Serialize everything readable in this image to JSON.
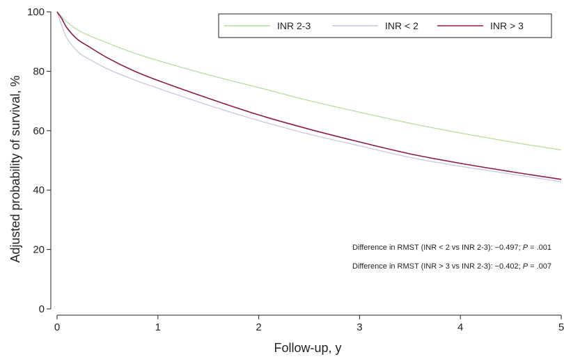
{
  "chart_data": {
    "type": "line",
    "title": "",
    "xlabel": "Follow-up, y",
    "ylabel": "Adjusted probability of survival, %",
    "xlim": [
      0,
      5
    ],
    "ylim": [
      0,
      100
    ],
    "x_ticks": [
      0,
      1,
      2,
      3,
      4,
      5
    ],
    "x_tick_labels": [
      "0",
      "1",
      "2",
      "3",
      "4",
      "5"
    ],
    "y_ticks": [
      0,
      20,
      40,
      60,
      80,
      100
    ],
    "y_tick_labels": [
      "0",
      "20",
      "40",
      "60",
      "80",
      "100"
    ],
    "grid": false,
    "legend_position": "top-right",
    "series": [
      {
        "name": "INR 2-3",
        "color": "#b7dca0",
        "x": [
          0,
          0.05,
          0.1,
          0.2,
          0.3,
          0.5,
          0.75,
          1,
          1.5,
          2,
          2.5,
          3,
          3.5,
          4,
          4.5,
          5
        ],
        "y": [
          100,
          98.2,
          96.5,
          94,
          92.3,
          89.5,
          86.3,
          83.6,
          78.8,
          74.5,
          70.1,
          66.2,
          62.5,
          59.2,
          56.2,
          53.5
        ]
      },
      {
        "name": "INR < 2",
        "color": "#c8c6e2",
        "x": [
          0,
          0.05,
          0.1,
          0.2,
          0.3,
          0.5,
          0.75,
          1,
          1.5,
          2,
          2.5,
          3,
          3.5,
          4,
          4.5,
          5
        ],
        "y": [
          100,
          95,
          91,
          86.8,
          84.4,
          80.8,
          77.3,
          74.3,
          68.6,
          63.4,
          58.8,
          54.9,
          51,
          48,
          45.4,
          42.8
        ]
      },
      {
        "name": "INR > 3",
        "color": "#8b1a4a",
        "x": [
          0,
          0.05,
          0.1,
          0.2,
          0.3,
          0.5,
          0.75,
          1,
          1.5,
          2,
          2.5,
          3,
          3.5,
          4,
          4.5,
          5
        ],
        "y": [
          100,
          97.5,
          94.5,
          90.8,
          88.6,
          84.5,
          80.3,
          76.9,
          70.9,
          65.3,
          60.5,
          56.2,
          52.2,
          49,
          46.2,
          43.6
        ]
      }
    ],
    "annotations": [
      {
        "prefix": "Difference in RMST (INR < 2 vs INR 2-3): −0.497; ",
        "p_label": "P",
        "p_value": " = .001"
      },
      {
        "prefix": "Difference in RMST (INR > 3 vs INR 2-3): −0.402; ",
        "p_label": "P",
        "p_value": " = .007"
      }
    ]
  }
}
